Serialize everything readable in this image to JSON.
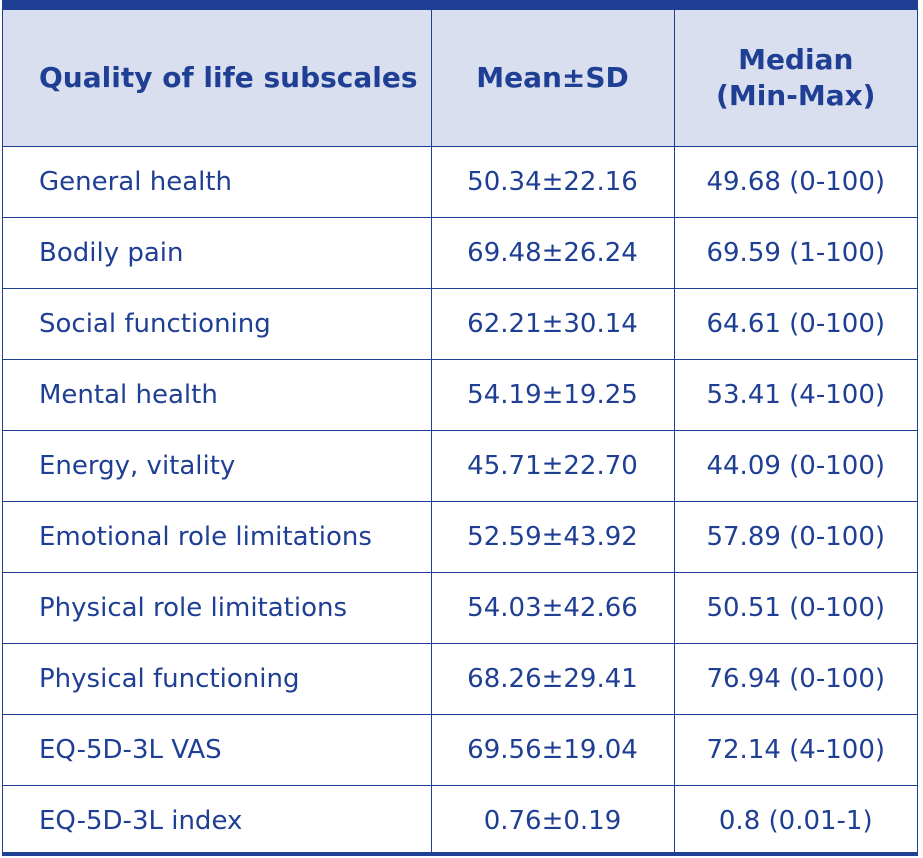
{
  "table": {
    "headers": {
      "subscale": "Quality of life subscales",
      "mean": "Mean±SD",
      "median_line1": "Median",
      "median_line2": "(Min-Max)"
    },
    "rows": [
      {
        "label": "General health",
        "mean": "50.34±22.16",
        "median": "49.68 (0-100)"
      },
      {
        "label": "Bodily pain",
        "mean": "69.48±26.24",
        "median": "69.59 (1-100)"
      },
      {
        "label": "Social functioning",
        "mean": "62.21±30.14",
        "median": "64.61 (0-100)"
      },
      {
        "label": "Mental health",
        "mean": "54.19±19.25",
        "median": "53.41 (4-100)"
      },
      {
        "label": "Energy, vitality",
        "mean": "45.71±22.70",
        "median": "44.09 (0-100)"
      },
      {
        "label": "Emotional role limitations",
        "mean": "52.59±43.92",
        "median": "57.89 (0-100)"
      },
      {
        "label": "Physical role limitations",
        "mean": "54.03±42.66",
        "median": "50.51 (0-100)"
      },
      {
        "label": "Physical functioning",
        "mean": "68.26±29.41",
        "median": "76.94 (0-100)"
      },
      {
        "label": "EQ-5D-3L VAS",
        "mean": "69.56±19.04",
        "median": "72.14 (4-100)"
      },
      {
        "label": "EQ-5D-3L index",
        "mean": "0.76±0.19",
        "median": "0.8 (0.01-1)"
      }
    ]
  },
  "colors": {
    "border": "#1f3f94",
    "header_bg": "#d9dfee",
    "text": "#1f3f94"
  }
}
